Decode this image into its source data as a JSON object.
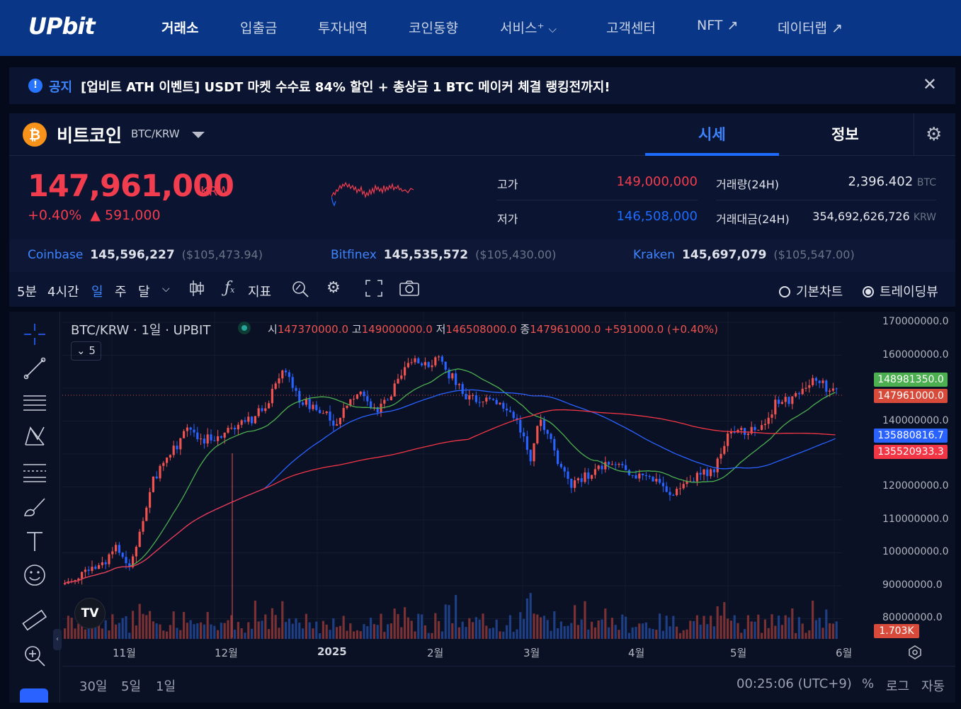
{
  "nav": {
    "logo": "UPbit",
    "items": [
      "거래소",
      "입출금",
      "투자내역",
      "코인동향",
      "서비스⁺",
      "고객센터",
      "NFT ↗",
      "데이터랩 ↗"
    ]
  },
  "notice": {
    "tag": "공지",
    "text": "[업비트 ATH 이벤트] USDT 마켓 수수료 84% 할인 + 총상금 1 BTC 메이커 체결 랭킹전까지!"
  },
  "coin": {
    "name": "비트코인",
    "pair": "BTC/KRW",
    "tabs": [
      "시세",
      "정보"
    ],
    "price": "147,961,000",
    "price_unit": "KRW",
    "change_rate": "+0.40%",
    "change_amount": "▲ 591,000",
    "high_label": "고가",
    "high": "149,000,000",
    "low_label": "저가",
    "low": "146,508,000",
    "volume_label": "거래량(24H)",
    "volume": "2,396.402",
    "volume_unit": "BTC",
    "amount_label": "거래대금(24H)",
    "amount": "354,692,626,726",
    "amount_unit": "KRW",
    "colors": {
      "up": "#f23d4f",
      "down": "#1e6cff",
      "accent": "#3d84ff"
    }
  },
  "exchanges": [
    {
      "name": "Coinbase",
      "price": "145,596,227",
      "usd": "($105,473.94)"
    },
    {
      "name": "Bitfinex",
      "price": "145,535,572",
      "usd": "($105,430.00)"
    },
    {
      "name": "Kraken",
      "price": "145,697,079",
      "usd": "($105,547.00)"
    }
  ],
  "toolbar": {
    "intervals": [
      "5분",
      "4시간",
      "일",
      "주",
      "달"
    ],
    "active_interval": "일",
    "indicator_label": "지표",
    "chart_modes": [
      "기본차트",
      "트레이딩뷰"
    ],
    "selected_mode": "트레이딩뷰"
  },
  "chart": {
    "legend_title": "BTC/KRW · 1일 · UPBIT",
    "ohlc": {
      "o_label": "시",
      "o": "147370000.0",
      "h_label": "고",
      "h": "149000000.0",
      "l_label": "저",
      "l": "146508000.0",
      "c_label": "종",
      "c": "147961000.0",
      "chg": "+591000.0 (+0.40%)"
    },
    "collapse_count": "5",
    "y_axis": [
      "170000000.0",
      "160000000.0",
      "150000000.0",
      "140000000.0",
      "130000000.0",
      "120000000.0",
      "110000000.0",
      "100000000.0",
      "90000000.0",
      "80000000.0"
    ],
    "x_axis": [
      "11월",
      "12월",
      "2025",
      "2월",
      "3월",
      "4월",
      "5월",
      "6월"
    ],
    "price_tags": [
      {
        "value": "148981350.0",
        "color": "#4caf50"
      },
      {
        "value": "147961000.0",
        "color": "#d84a3a"
      },
      {
        "value": "135880816.7",
        "color": "#2962ff"
      },
      {
        "value": "135520933.3",
        "color": "#f23645"
      }
    ],
    "volume_tag": "1.703K",
    "ranges": [
      "30일",
      "5일",
      "1일"
    ],
    "clock": "00:25:06 (UTC+9)",
    "scale_options": [
      "%",
      "로그",
      "자동"
    ],
    "tv_logo": "TV"
  }
}
